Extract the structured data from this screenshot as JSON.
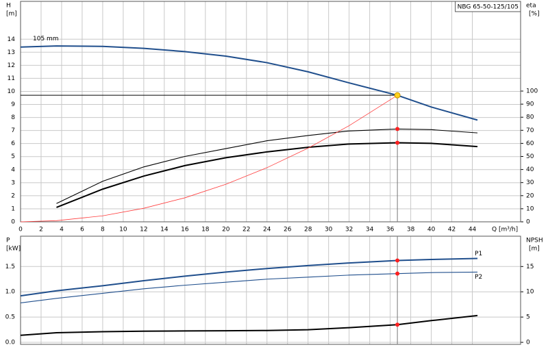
{
  "chart_data": [
    {
      "type": "line",
      "title": "NBG 65-50-125/105",
      "y_label": [
        "H",
        "[m]"
      ],
      "y2_label": [
        "eta",
        "[%]"
      ],
      "x_label": "Q [m³/h]",
      "xlim": [
        0,
        48.7
      ],
      "ylim": [
        0,
        16.9
      ],
      "y2lim": [
        0,
        168.6
      ],
      "xticks": [
        0,
        2,
        4,
        6,
        8,
        10,
        12,
        14,
        16,
        18,
        20,
        22,
        24,
        26,
        28,
        30,
        32,
        34,
        36,
        38,
        40,
        42,
        44
      ],
      "yticks": [
        0,
        1,
        2,
        3,
        4,
        5,
        6,
        7,
        8,
        9,
        10,
        11,
        12,
        13,
        14
      ],
      "y2ticks": [
        0,
        10,
        20,
        30,
        40,
        50,
        60,
        70,
        80,
        90,
        100
      ],
      "grid": true,
      "x": [
        0,
        3.5,
        8,
        12,
        16,
        20,
        24,
        28,
        32,
        36.7,
        40,
        44.5
      ],
      "series": [
        {
          "name": "105 mm",
          "color": "#1f4e8c",
          "style": "thick",
          "values": [
            13.4,
            13.48,
            13.45,
            13.3,
            13.05,
            12.7,
            12.2,
            11.5,
            10.65,
            9.7,
            8.8,
            7.8
          ]
        },
        {
          "color": "#000000",
          "style": "thin",
          "axis": "y2",
          "values": [
            null,
            14,
            31,
            42,
            50,
            56,
            62,
            66,
            69.5,
            71,
            70.5,
            68
          ]
        },
        {
          "color": "#000000",
          "style": "thick",
          "axis": "y2",
          "values": [
            null,
            11,
            25,
            35,
            43,
            49,
            53.5,
            57,
            59.5,
            60.5,
            60,
            57.5
          ]
        },
        {
          "color": "#ff3b3b",
          "style": "hair",
          "values": [
            0,
            0.088,
            0.46,
            1.04,
            1.84,
            2.88,
            4.15,
            5.65,
            7.37,
            9.7,
            null,
            null
          ]
        }
      ],
      "duty_point": {
        "x": 36.7,
        "y": 9.7
      }
    },
    {
      "type": "line",
      "y_label": [
        "P",
        "[kW]"
      ],
      "y2_label": [
        "NPSH",
        "[m]"
      ],
      "xlim": [
        0,
        48.7
      ],
      "ylim": [
        -0.04,
        2.1
      ],
      "y2lim": [
        -0.4,
        21
      ],
      "xticks": [
        0,
        2,
        4,
        6,
        8,
        10,
        12,
        14,
        16,
        18,
        20,
        22,
        24,
        26,
        28,
        30,
        32,
        34,
        36,
        38,
        40,
        42,
        44
      ],
      "yticks": [
        {
          "value": 0,
          "label": "0.0"
        },
        0.5,
        {
          "value": 1,
          "label": "1.0"
        },
        1.5
      ],
      "y2ticks": [
        0,
        5,
        10,
        15
      ],
      "grid": true,
      "x": [
        0,
        3.5,
        8,
        12,
        16,
        20,
        24,
        28,
        32,
        36.7,
        40,
        44.5
      ],
      "series": [
        {
          "name": "P1",
          "color": "#1f4e8c",
          "style": "thick",
          "values": [
            0.92,
            1.02,
            1.12,
            1.22,
            1.31,
            1.39,
            1.46,
            1.52,
            1.57,
            1.62,
            1.64,
            1.66
          ]
        },
        {
          "name": "P2",
          "color": "#1f4e8c",
          "style": "thin",
          "values": [
            0.78,
            0.87,
            0.97,
            1.06,
            1.13,
            1.19,
            1.25,
            1.29,
            1.33,
            1.36,
            1.38,
            1.39
          ]
        },
        {
          "color": "#000000",
          "style": "thick",
          "axis": "y2",
          "values": [
            1.4,
            1.9,
            2.1,
            2.2,
            2.25,
            2.3,
            2.35,
            2.5,
            2.9,
            3.5,
            4.3,
            5.3
          ]
        }
      ],
      "duty_point": {
        "x": 36.7
      }
    }
  ]
}
